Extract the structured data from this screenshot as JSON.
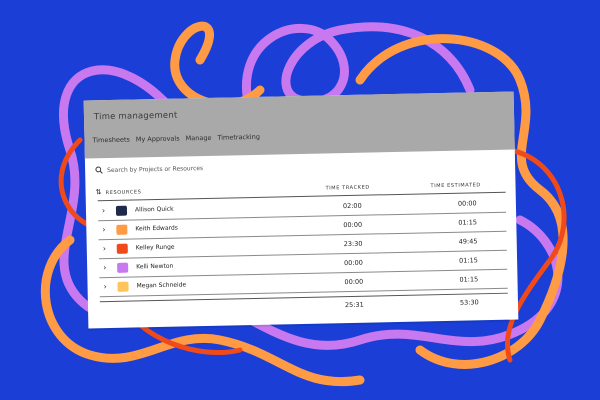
{
  "colors": {
    "background": "#1a3ed6",
    "squiggle_purple": "#c879f0",
    "squiggle_orange": "#ff9a45",
    "squiggle_red": "#f04a1a",
    "header_gray": "#a9a9a9"
  },
  "app": {
    "title": "Time management",
    "nav": [
      "Timesheets",
      "My Approvals",
      "Manage",
      "Timetracking"
    ]
  },
  "search": {
    "placeholder": "Search by Projects or Resources"
  },
  "table": {
    "headers": {
      "resources": "Resources",
      "time_tracked": "Time tracked",
      "time_estimated": "Time estimated"
    },
    "rows": [
      {
        "name": "Allison Quick",
        "swatch": "#1f2a4a",
        "tracked": "02:00",
        "estimated": "00:00"
      },
      {
        "name": "Keith Edwards",
        "swatch": "#ff9a45",
        "tracked": "00:00",
        "estimated": "01:15"
      },
      {
        "name": "Kelley Runge",
        "swatch": "#f04a1a",
        "tracked": "23:30",
        "estimated": "49:45"
      },
      {
        "name": "Kelli Newton",
        "swatch": "#c879f0",
        "tracked": "00:00",
        "estimated": "01:15"
      },
      {
        "name": "Megan Schneide",
        "swatch": "#ffc45a",
        "tracked": "00:00",
        "estimated": "01:15"
      }
    ],
    "totals": {
      "tracked": "25:31",
      "estimated": "53:30"
    }
  }
}
